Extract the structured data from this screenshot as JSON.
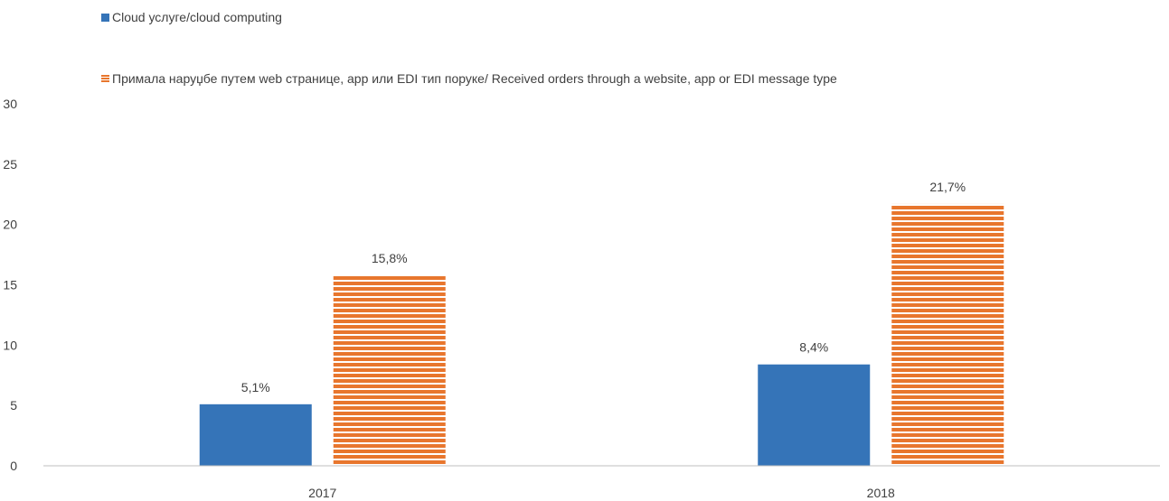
{
  "chart_data": {
    "type": "bar",
    "categories": [
      "2017",
      "2018"
    ],
    "series": [
      {
        "name": "Cloud услуге/cloud computing",
        "values": [
          5.1,
          8.4
        ],
        "labels": [
          "5,1%",
          "8,4%"
        ],
        "color": "#3574b8",
        "pattern": "solid"
      },
      {
        "name": "Примала наруџбе путем web странице, app или EDI тип поруке/ Received orders through a website, app or EDI message type",
        "values": [
          15.8,
          21.7
        ],
        "labels": [
          "15,8%",
          "21,7%"
        ],
        "color": "#e8762d",
        "pattern": "horizontal-stripes"
      }
    ],
    "ylim": [
      0,
      30
    ],
    "yticks": [
      0,
      5,
      10,
      15,
      20,
      25,
      30
    ],
    "title": "",
    "xlabel": "",
    "ylabel": "",
    "grid": false,
    "legend": "top-left"
  }
}
